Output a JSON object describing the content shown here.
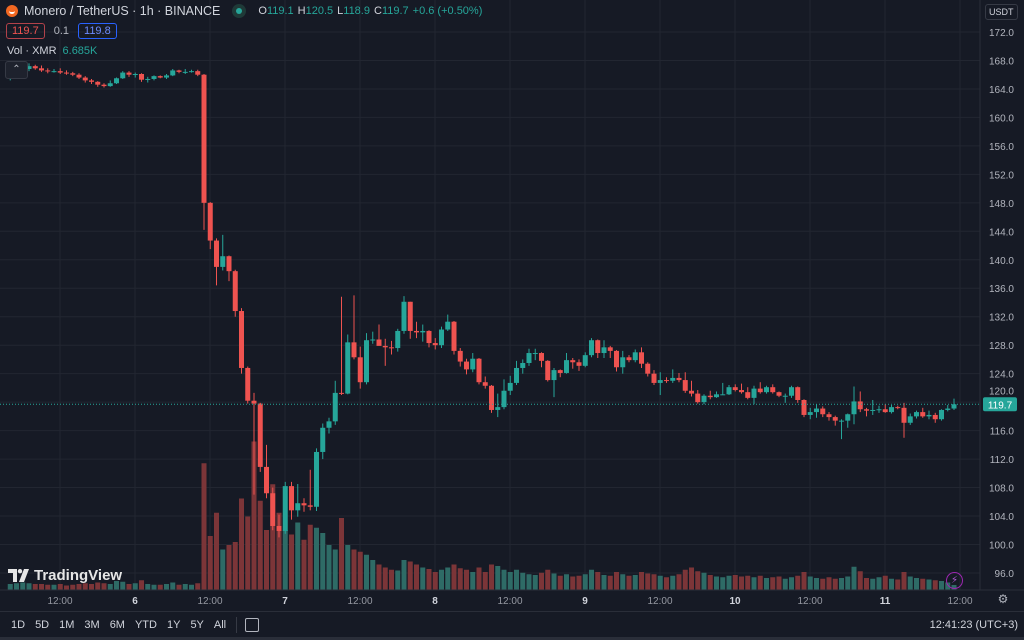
{
  "header": {
    "symbol_title": "Monero / TetherUS · 1h · BINANCE",
    "ohlc": {
      "o_label": "O",
      "o": "119.1",
      "h_label": "H",
      "h": "120.5",
      "l_label": "L",
      "l": "118.9",
      "c_label": "C",
      "c": "119.7",
      "change": "+0.6 (+0.50%)"
    },
    "sell_price": "119.7",
    "spread": "0.1",
    "buy_price": "119.8",
    "volume_label": "Vol · XMR",
    "volume_value": "6.685K",
    "collapse_icon": "chevron-up-icon",
    "currency_button": "USDT"
  },
  "branding": {
    "logo_text": "TradingView"
  },
  "bottom_toolbar": {
    "ranges": [
      "1D",
      "5D",
      "1M",
      "3M",
      "6M",
      "YTD",
      "1Y",
      "5Y",
      "All"
    ],
    "date_range_icon": "calendar-goto-icon",
    "clock": "12:41:23 (UTC+3)"
  },
  "colors": {
    "background": "#161a25",
    "grid": "#222631",
    "up": "#26a69a",
    "down": "#ef5350",
    "up_volume": "#2e6b66",
    "down_volume": "#7c3538",
    "last_price": "#26a69a",
    "alert_icon": "#9c27b0"
  },
  "chart_data": {
    "type": "candlestick",
    "interval": "1h",
    "title": "Monero / TetherUS · 1h · BINANCE",
    "y_axis": {
      "ticks": [
        172.0,
        168.0,
        164.0,
        160.0,
        156.0,
        152.0,
        148.0,
        144.0,
        140.0,
        136.0,
        132.0,
        128.0,
        124.0,
        120.0,
        116.0,
        112.0,
        108.0,
        104.0,
        100.0,
        96.0
      ],
      "range": [
        95,
        174
      ],
      "side": "right"
    },
    "x_axis": {
      "ticks": [
        "12:00",
        "6",
        "12:00",
        "7",
        "12:00",
        "8",
        "12:00",
        "9",
        "12:00",
        "10",
        "12:00",
        "11",
        "12:00"
      ],
      "day_ticks": [
        "6",
        "7",
        "8",
        "9",
        "10",
        "11"
      ]
    },
    "last_price": 119.7,
    "grid": true,
    "volume_unit": "K",
    "fields": [
      "open",
      "high",
      "low",
      "close",
      "volume"
    ],
    "candles": [
      [
        165.6,
        166.3,
        165.2,
        165.7,
        8
      ],
      [
        165.7,
        166.4,
        165.5,
        166.0,
        9
      ],
      [
        166.0,
        167.0,
        165.8,
        166.8,
        10
      ],
      [
        166.8,
        167.6,
        166.5,
        167.2,
        9
      ],
      [
        167.2,
        167.4,
        166.7,
        166.9,
        8
      ],
      [
        166.9,
        167.3,
        166.4,
        166.6,
        8
      ],
      [
        166.6,
        166.9,
        166.2,
        166.5,
        7
      ],
      [
        166.5,
        166.8,
        166.3,
        166.5,
        7
      ],
      [
        166.5,
        166.9,
        166.1,
        166.3,
        8
      ],
      [
        166.3,
        166.6,
        166.0,
        166.2,
        6
      ],
      [
        166.2,
        166.4,
        165.8,
        166.0,
        7
      ],
      [
        166.0,
        166.2,
        165.4,
        165.6,
        8
      ],
      [
        165.6,
        165.8,
        164.9,
        165.2,
        9
      ],
      [
        165.2,
        165.4,
        164.7,
        165.0,
        8
      ],
      [
        165.0,
        165.1,
        164.3,
        164.6,
        10
      ],
      [
        164.6,
        164.8,
        164.2,
        164.4,
        9
      ],
      [
        164.4,
        165.2,
        164.3,
        164.8,
        8
      ],
      [
        164.8,
        165.6,
        164.7,
        165.5,
        12
      ],
      [
        165.5,
        166.5,
        165.4,
        166.3,
        11
      ],
      [
        166.3,
        166.5,
        165.7,
        166.0,
        8
      ],
      [
        166.0,
        166.3,
        165.6,
        166.1,
        9
      ],
      [
        166.1,
        166.2,
        165.0,
        165.3,
        13
      ],
      [
        165.3,
        165.7,
        164.9,
        165.4,
        8
      ],
      [
        165.4,
        165.9,
        165.2,
        165.8,
        7
      ],
      [
        165.8,
        165.9,
        165.5,
        165.6,
        7
      ],
      [
        165.6,
        166.1,
        165.4,
        165.9,
        8
      ],
      [
        165.9,
        166.8,
        165.8,
        166.6,
        10
      ],
      [
        166.6,
        166.7,
        166.2,
        166.4,
        7
      ],
      [
        166.4,
        166.8,
        166.1,
        166.4,
        8
      ],
      [
        166.4,
        166.7,
        166.3,
        166.5,
        7
      ],
      [
        166.5,
        166.7,
        165.8,
        166.0,
        9
      ],
      [
        166.0,
        166.1,
        144.2,
        148.0,
        169
      ],
      [
        148.0,
        148.1,
        141.5,
        142.7,
        72
      ],
      [
        142.7,
        143.0,
        136.4,
        139.0,
        103
      ],
      [
        139.0,
        143.5,
        138.5,
        140.5,
        54
      ],
      [
        140.5,
        140.6,
        137.0,
        138.4,
        60
      ],
      [
        138.4,
        138.6,
        132.0,
        132.8,
        64
      ],
      [
        132.8,
        133.2,
        124.0,
        124.8,
        122
      ],
      [
        124.8,
        125.0,
        119.8,
        120.2,
        98
      ],
      [
        120.2,
        121.3,
        107.0,
        119.8,
        198
      ],
      [
        119.8,
        119.9,
        110.2,
        110.9,
        119
      ],
      [
        110.9,
        114.0,
        106.5,
        107.2,
        80
      ],
      [
        107.2,
        108.0,
        102.0,
        102.6,
        141
      ],
      [
        102.6,
        104.2,
        101.0,
        101.9,
        103
      ],
      [
        101.9,
        108.8,
        101.5,
        108.2,
        80
      ],
      [
        108.2,
        108.8,
        103.5,
        104.8,
        74
      ],
      [
        104.8,
        108.5,
        103.9,
        105.8,
        90
      ],
      [
        105.8,
        106.5,
        104.6,
        105.5,
        67
      ],
      [
        105.5,
        110.5,
        104.8,
        105.3,
        87
      ],
      [
        105.3,
        113.5,
        104.7,
        113.0,
        83
      ],
      [
        113.0,
        117.0,
        112.0,
        116.4,
        76
      ],
      [
        116.4,
        117.8,
        115.6,
        117.3,
        60
      ],
      [
        117.3,
        123.0,
        116.8,
        121.3,
        54
      ],
      [
        121.3,
        134.8,
        121.0,
        121.2,
        96
      ],
      [
        121.2,
        129.5,
        121.1,
        128.4,
        60
      ],
      [
        128.4,
        135.0,
        126.0,
        126.3,
        54
      ],
      [
        126.3,
        127.8,
        121.9,
        122.8,
        51
      ],
      [
        122.8,
        129.7,
        122.5,
        128.7,
        47
      ],
      [
        128.7,
        129.9,
        128.2,
        128.8,
        40
      ],
      [
        128.8,
        130.9,
        128.0,
        127.9,
        34
      ],
      [
        127.9,
        128.9,
        125.1,
        127.7,
        30
      ],
      [
        127.7,
        128.6,
        126.7,
        127.6,
        27
      ],
      [
        127.6,
        130.3,
        127.1,
        130.0,
        26
      ],
      [
        130.0,
        134.9,
        129.6,
        134.1,
        40
      ],
      [
        134.1,
        134.1,
        128.9,
        130.0,
        38
      ],
      [
        130.0,
        131.3,
        129.0,
        129.8,
        34
      ],
      [
        129.8,
        130.9,
        128.5,
        130.0,
        30
      ],
      [
        130.0,
        130.1,
        127.7,
        128.3,
        28
      ],
      [
        128.3,
        129.0,
        127.4,
        128.0,
        24
      ],
      [
        128.0,
        130.6,
        127.6,
        130.2,
        27
      ],
      [
        130.2,
        132.3,
        130.0,
        131.3,
        30
      ],
      [
        131.3,
        131.4,
        126.7,
        127.2,
        34
      ],
      [
        127.2,
        127.6,
        125.0,
        125.7,
        29
      ],
      [
        125.7,
        126.1,
        123.9,
        124.6,
        27
      ],
      [
        124.6,
        126.9,
        124.2,
        126.1,
        24
      ],
      [
        126.1,
        126.2,
        122.5,
        122.8,
        30
      ],
      [
        122.8,
        123.6,
        121.9,
        122.3,
        24
      ],
      [
        122.3,
        122.4,
        118.5,
        118.9,
        34
      ],
      [
        118.9,
        121.2,
        117.9,
        119.3,
        32
      ],
      [
        119.3,
        123.2,
        119.0,
        121.6,
        27
      ],
      [
        121.6,
        123.7,
        121.0,
        122.7,
        24
      ],
      [
        122.7,
        125.8,
        122.4,
        124.8,
        27
      ],
      [
        124.8,
        126.0,
        124.0,
        125.5,
        23
      ],
      [
        125.5,
        127.5,
        125.1,
        126.9,
        21
      ],
      [
        126.9,
        127.5,
        125.9,
        126.9,
        20
      ],
      [
        126.9,
        127.0,
        124.9,
        125.8,
        23
      ],
      [
        125.8,
        125.9,
        122.9,
        123.1,
        27
      ],
      [
        123.1,
        124.8,
        120.7,
        124.5,
        22
      ],
      [
        124.5,
        124.6,
        123.5,
        124.1,
        19
      ],
      [
        124.1,
        126.9,
        124.0,
        125.9,
        21
      ],
      [
        125.9,
        126.2,
        124.7,
        125.6,
        18
      ],
      [
        125.6,
        126.0,
        124.4,
        125.1,
        19
      ],
      [
        125.1,
        127.0,
        124.9,
        126.6,
        21
      ],
      [
        126.6,
        129.0,
        126.3,
        128.7,
        27
      ],
      [
        128.7,
        128.8,
        126.2,
        126.9,
        24
      ],
      [
        126.9,
        128.7,
        126.2,
        127.7,
        20
      ],
      [
        127.7,
        127.9,
        126.2,
        127.2,
        19
      ],
      [
        127.2,
        127.3,
        124.3,
        124.9,
        24
      ],
      [
        124.9,
        127.2,
        124.0,
        126.3,
        21
      ],
      [
        126.3,
        126.6,
        125.6,
        125.9,
        19
      ],
      [
        125.9,
        127.4,
        125.6,
        127.0,
        20
      ],
      [
        127.0,
        127.7,
        124.8,
        125.4,
        24
      ],
      [
        125.4,
        125.6,
        123.6,
        124.0,
        22
      ],
      [
        124.0,
        124.5,
        122.4,
        122.7,
        21
      ],
      [
        122.7,
        124.2,
        121.0,
        123.1,
        19
      ],
      [
        123.1,
        123.5,
        122.7,
        123.0,
        17
      ],
      [
        123.0,
        124.6,
        122.7,
        123.4,
        19
      ],
      [
        123.4,
        124.1,
        122.8,
        123.1,
        21
      ],
      [
        123.1,
        124.2,
        121.3,
        121.6,
        27
      ],
      [
        121.6,
        123.0,
        120.8,
        121.2,
        30
      ],
      [
        121.2,
        121.7,
        119.8,
        120.0,
        25
      ],
      [
        120.0,
        121.1,
        119.7,
        120.9,
        23
      ],
      [
        120.9,
        121.6,
        120.4,
        120.7,
        20
      ],
      [
        120.7,
        121.5,
        120.6,
        121.1,
        18
      ],
      [
        121.1,
        122.7,
        121.0,
        121.1,
        17
      ],
      [
        121.1,
        122.4,
        121.0,
        122.1,
        19
      ],
      [
        122.1,
        122.5,
        121.5,
        121.7,
        20
      ],
      [
        121.7,
        122.6,
        121.2,
        121.4,
        18
      ],
      [
        121.4,
        122.1,
        120.4,
        120.6,
        19
      ],
      [
        120.6,
        122.3,
        119.7,
        121.9,
        17
      ],
      [
        121.9,
        122.8,
        121.2,
        121.4,
        19
      ],
      [
        121.4,
        122.3,
        121.2,
        122.1,
        16
      ],
      [
        122.1,
        122.5,
        121.2,
        121.4,
        17
      ],
      [
        121.4,
        121.5,
        120.7,
        120.9,
        18
      ],
      [
        120.9,
        121.2,
        119.9,
        120.9,
        15
      ],
      [
        120.9,
        122.3,
        120.6,
        122.1,
        17
      ],
      [
        122.1,
        122.2,
        119.9,
        120.3,
        19
      ],
      [
        120.3,
        120.4,
        117.9,
        118.2,
        24
      ],
      [
        118.2,
        119.2,
        117.6,
        118.6,
        18
      ],
      [
        118.6,
        119.7,
        117.8,
        119.1,
        16
      ],
      [
        119.1,
        119.4,
        117.9,
        118.3,
        15
      ],
      [
        118.3,
        118.6,
        117.4,
        117.9,
        17
      ],
      [
        117.9,
        118.1,
        116.7,
        117.4,
        15
      ],
      [
        117.4,
        117.6,
        114.8,
        117.4,
        16
      ],
      [
        117.4,
        118.4,
        116.4,
        118.3,
        18
      ],
      [
        118.3,
        122.2,
        116.9,
        120.1,
        31
      ],
      [
        120.1,
        121.5,
        118.6,
        119.0,
        25
      ],
      [
        119.0,
        119.2,
        118.0,
        118.8,
        16
      ],
      [
        118.8,
        120.3,
        118.2,
        118.9,
        15
      ],
      [
        118.9,
        119.5,
        118.5,
        119.0,
        17
      ],
      [
        119.0,
        119.7,
        118.5,
        118.6,
        19
      ],
      [
        118.6,
        119.6,
        118.4,
        119.3,
        15
      ],
      [
        119.3,
        119.5,
        119.0,
        119.2,
        14
      ],
      [
        119.2,
        119.9,
        115.0,
        117.1,
        24
      ],
      [
        117.1,
        118.4,
        116.8,
        118.0,
        18
      ],
      [
        118.0,
        118.8,
        117.7,
        118.6,
        16
      ],
      [
        118.6,
        119.2,
        117.8,
        118.0,
        15
      ],
      [
        118.0,
        118.8,
        117.6,
        118.2,
        14
      ],
      [
        118.2,
        118.5,
        117.1,
        117.6,
        13
      ],
      [
        117.6,
        119.0,
        117.4,
        118.9,
        12
      ],
      [
        118.9,
        119.6,
        118.7,
        119.1,
        10
      ],
      [
        119.1,
        120.5,
        118.9,
        119.7,
        6.685
      ]
    ]
  }
}
